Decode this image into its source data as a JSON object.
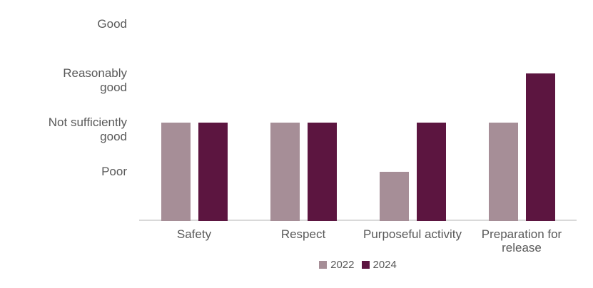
{
  "chart_data": {
    "type": "bar",
    "title": "",
    "xlabel": "",
    "ylabel": "",
    "categories": [
      "Safety",
      "Respect",
      "Purposeful activity",
      "Preparation for release"
    ],
    "category_label_lines": [
      [
        "Safety"
      ],
      [
        "Respect"
      ],
      [
        "Purposeful activity"
      ],
      [
        "Preparation for",
        "release"
      ]
    ],
    "series": [
      {
        "name": "2022",
        "color": "#a68e97",
        "values": [
          2,
          2,
          1,
          2
        ]
      },
      {
        "name": "2024",
        "color": "#5c1540",
        "values": [
          2,
          2,
          2,
          3
        ]
      }
    ],
    "value_scale": {
      "1": "Poor",
      "2": "Not sufficiently good",
      "3": "Reasonably good",
      "4": "Good"
    },
    "y_tick_labels": [
      {
        "value": 4,
        "lines": [
          "Good"
        ]
      },
      {
        "value": 3,
        "lines": [
          "Reasonably",
          "good"
        ]
      },
      {
        "value": 2,
        "lines": [
          "Not sufficiently",
          "good"
        ]
      },
      {
        "value": 1,
        "lines": [
          "Poor"
        ]
      }
    ],
    "ylim": [
      0,
      4
    ],
    "grid": false,
    "legend_position": "bottom"
  },
  "colors": {
    "axis_line": "#d9d9d9",
    "text": "#595959",
    "background": "#ffffff"
  }
}
